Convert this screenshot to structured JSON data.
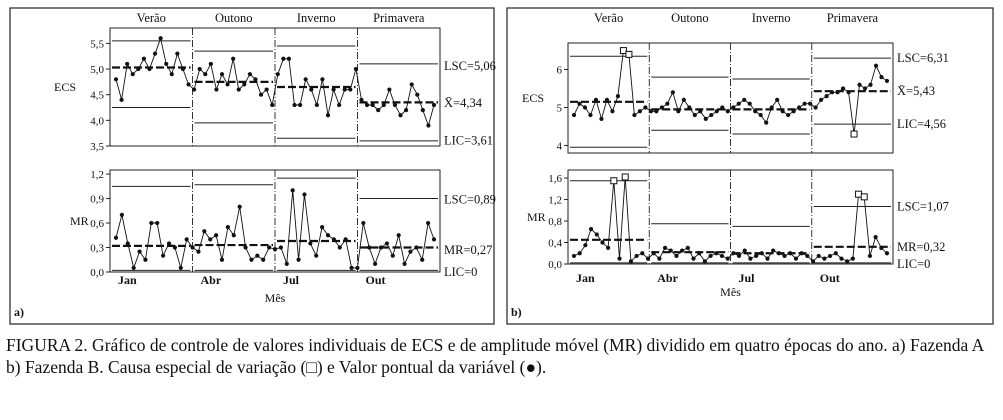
{
  "figure": {
    "caption": "FIGURA 2. Gráfico de controle de valores individuais de ECS e de amplitude móvel (MR) dividido em quatro épocas do ano. a) Fazenda A b) Fazenda B. Causa especial de variação (□) e Valor pontual da variável (●)."
  },
  "chart_data": [
    {
      "panel_label": "a)",
      "type": "line",
      "x_title": "Mês",
      "month_labels": [
        "Jan",
        "Abr",
        "Jul",
        "Out"
      ],
      "season_labels": [
        "Verão",
        "Outono",
        "Inverno",
        "Primavera"
      ],
      "charts": [
        {
          "ylabel": "ECS",
          "ylim": [
            3.5,
            5.8
          ],
          "yticks": [
            "3,5",
            "4,0",
            "4,5",
            "5,0",
            "5,5"
          ],
          "ytick_values": [
            3.5,
            4.0,
            4.5,
            5.0,
            5.5
          ],
          "limit_labels": [
            "LSC=5,06",
            "X̄=4,34",
            "LIC=3,61"
          ],
          "limit_values": [
            5.06,
            4.34,
            3.61
          ],
          "season_limits": [
            {
              "ucl": 5.55,
              "center": 5.03,
              "lcl": 4.25
            },
            {
              "ucl": 5.35,
              "center": 4.75,
              "lcl": 3.95
            },
            {
              "ucl": 5.45,
              "center": 4.65,
              "lcl": 3.65
            },
            {
              "ucl": 5.1,
              "center": 4.35,
              "lcl": 3.6
            }
          ],
          "values": [
            4.8,
            4.4,
            5.1,
            4.9,
            5.0,
            5.2,
            5.0,
            5.3,
            5.6,
            5.1,
            4.9,
            5.3,
            5.0,
            4.7,
            4.6,
            5.0,
            4.9,
            5.1,
            4.6,
            4.9,
            4.7,
            5.2,
            4.6,
            4.7,
            4.9,
            4.8,
            4.5,
            4.6,
            4.3,
            4.9,
            5.2,
            5.2,
            4.3,
            4.3,
            4.8,
            4.6,
            4.3,
            4.8,
            4.1,
            4.6,
            4.3,
            4.6,
            4.6,
            5.0,
            4.4,
            4.3,
            4.3,
            4.2,
            4.3,
            4.6,
            4.3,
            4.1,
            4.2,
            4.7,
            4.5,
            4.2,
            3.9,
            4.3
          ],
          "special_causes": []
        },
        {
          "ylabel": "MR",
          "ylim": [
            0,
            1.25
          ],
          "yticks": [
            "0,0",
            "0,3",
            "0,6",
            "0,9",
            "1,2"
          ],
          "ytick_values": [
            0,
            0.3,
            0.6,
            0.9,
            1.2
          ],
          "limit_labels": [
            "LSC=0,89",
            "MR=0,27",
            "LIC=0"
          ],
          "limit_values": [
            0.89,
            0.27,
            0
          ],
          "season_limits": [
            {
              "ucl": 1.05,
              "center": 0.32,
              "lcl": 0.02
            },
            {
              "ucl": 1.07,
              "center": 0.33,
              "lcl": 0.02
            },
            {
              "ucl": 1.15,
              "center": 0.38,
              "lcl": 0.02
            },
            {
              "ucl": 0.9,
              "center": 0.3,
              "lcl": 0.02
            }
          ],
          "values": [
            0.42,
            0.7,
            0.35,
            0.05,
            0.25,
            0.15,
            0.6,
            0.6,
            0.2,
            0.35,
            0.3,
            0.05,
            0.4,
            0.3,
            0.25,
            0.5,
            0.4,
            0.45,
            0.15,
            0.55,
            0.45,
            0.8,
            0.3,
            0.15,
            0.2,
            0.15,
            0.3,
            0.28,
            0.3,
            0.1,
            1.0,
            0.15,
            0.95,
            0.35,
            0.2,
            0.55,
            0.45,
            0.4,
            0.3,
            0.4,
            0.05,
            0.05,
            0.6,
            0.3,
            0.1,
            0.3,
            0.35,
            0.2,
            0.45,
            0.1,
            0.25,
            0.3,
            0.15,
            0.6,
            0.4
          ],
          "special_causes": []
        }
      ]
    },
    {
      "panel_label": "b)",
      "type": "line",
      "x_title": "Mês",
      "month_labels": [
        "Jan",
        "Abr",
        "Jul",
        "Out"
      ],
      "season_labels": [
        "Verão",
        "Outono",
        "Inverno",
        "Primavera"
      ],
      "charts": [
        {
          "ylabel": "ECS",
          "ylim": [
            3.8,
            6.7
          ],
          "yticks": [
            "4",
            "5",
            "6"
          ],
          "ytick_values": [
            4,
            5,
            6
          ],
          "limit_labels": [
            "LSC=6,31",
            "X̄=5,43",
            "LIC=4,56"
          ],
          "limit_values": [
            6.31,
            5.43,
            4.56
          ],
          "season_limits": [
            {
              "ucl": 6.35,
              "center": 5.15,
              "lcl": 3.95
            },
            {
              "ucl": 5.8,
              "center": 4.95,
              "lcl": 4.4
            },
            {
              "ucl": 5.75,
              "center": 4.95,
              "lcl": 4.3
            },
            {
              "ucl": 6.3,
              "center": 5.43,
              "lcl": 4.56
            }
          ],
          "values": [
            4.8,
            5.1,
            5.0,
            4.8,
            5.2,
            4.7,
            5.2,
            4.9,
            5.3,
            6.5,
            6.4,
            4.8,
            4.9,
            5.0,
            4.9,
            4.9,
            5.0,
            5.1,
            5.4,
            4.9,
            5.2,
            5.0,
            4.8,
            4.9,
            4.7,
            4.8,
            4.9,
            5.0,
            4.9,
            5.0,
            5.1,
            5.2,
            5.1,
            4.9,
            4.8,
            4.6,
            5.0,
            5.2,
            4.9,
            4.8,
            4.9,
            5.0,
            5.1,
            5.1,
            5.0,
            5.2,
            5.3,
            5.4,
            5.4,
            5.5,
            5.4,
            4.3,
            5.6,
            5.5,
            5.6,
            6.1,
            5.8,
            5.7
          ],
          "special_causes": [
            9,
            10,
            51
          ]
        },
        {
          "ylabel": "MR",
          "ylim": [
            0,
            1.75
          ],
          "yticks": [
            "0,0",
            "0,4",
            "0,8",
            "1,2",
            "1,6"
          ],
          "ytick_values": [
            0,
            0.4,
            0.8,
            1.2,
            1.6
          ],
          "limit_labels": [
            "LSC=1,07",
            "MR=0,32",
            "LIC=0"
          ],
          "limit_values": [
            1.07,
            0.32,
            0
          ],
          "season_limits": [
            {
              "ucl": 1.55,
              "center": 0.45,
              "lcl": 0.02
            },
            {
              "ucl": 0.75,
              "center": 0.22,
              "lcl": 0.02
            },
            {
              "ucl": 0.7,
              "center": 0.2,
              "lcl": 0.02
            },
            {
              "ucl": 1.07,
              "center": 0.32,
              "lcl": 0.02
            }
          ],
          "values": [
            0.15,
            0.2,
            0.35,
            0.65,
            0.55,
            0.4,
            0.3,
            1.55,
            0.1,
            1.62,
            0.05,
            0.15,
            0.2,
            0.1,
            0.2,
            0.1,
            0.3,
            0.25,
            0.15,
            0.25,
            0.3,
            0.1,
            0.2,
            0.05,
            0.15,
            0.2,
            0.15,
            0.1,
            0.2,
            0.15,
            0.25,
            0.1,
            0.15,
            0.2,
            0.1,
            0.25,
            0.2,
            0.15,
            0.2,
            0.1,
            0.2,
            0.15,
            0.05,
            0.15,
            0.1,
            0.15,
            0.2,
            0.1,
            0.05,
            0.1,
            1.3,
            1.25,
            0.15,
            0.5,
            0.3,
            0.2
          ],
          "special_causes": [
            7,
            9,
            50,
            51
          ]
        }
      ]
    }
  ]
}
